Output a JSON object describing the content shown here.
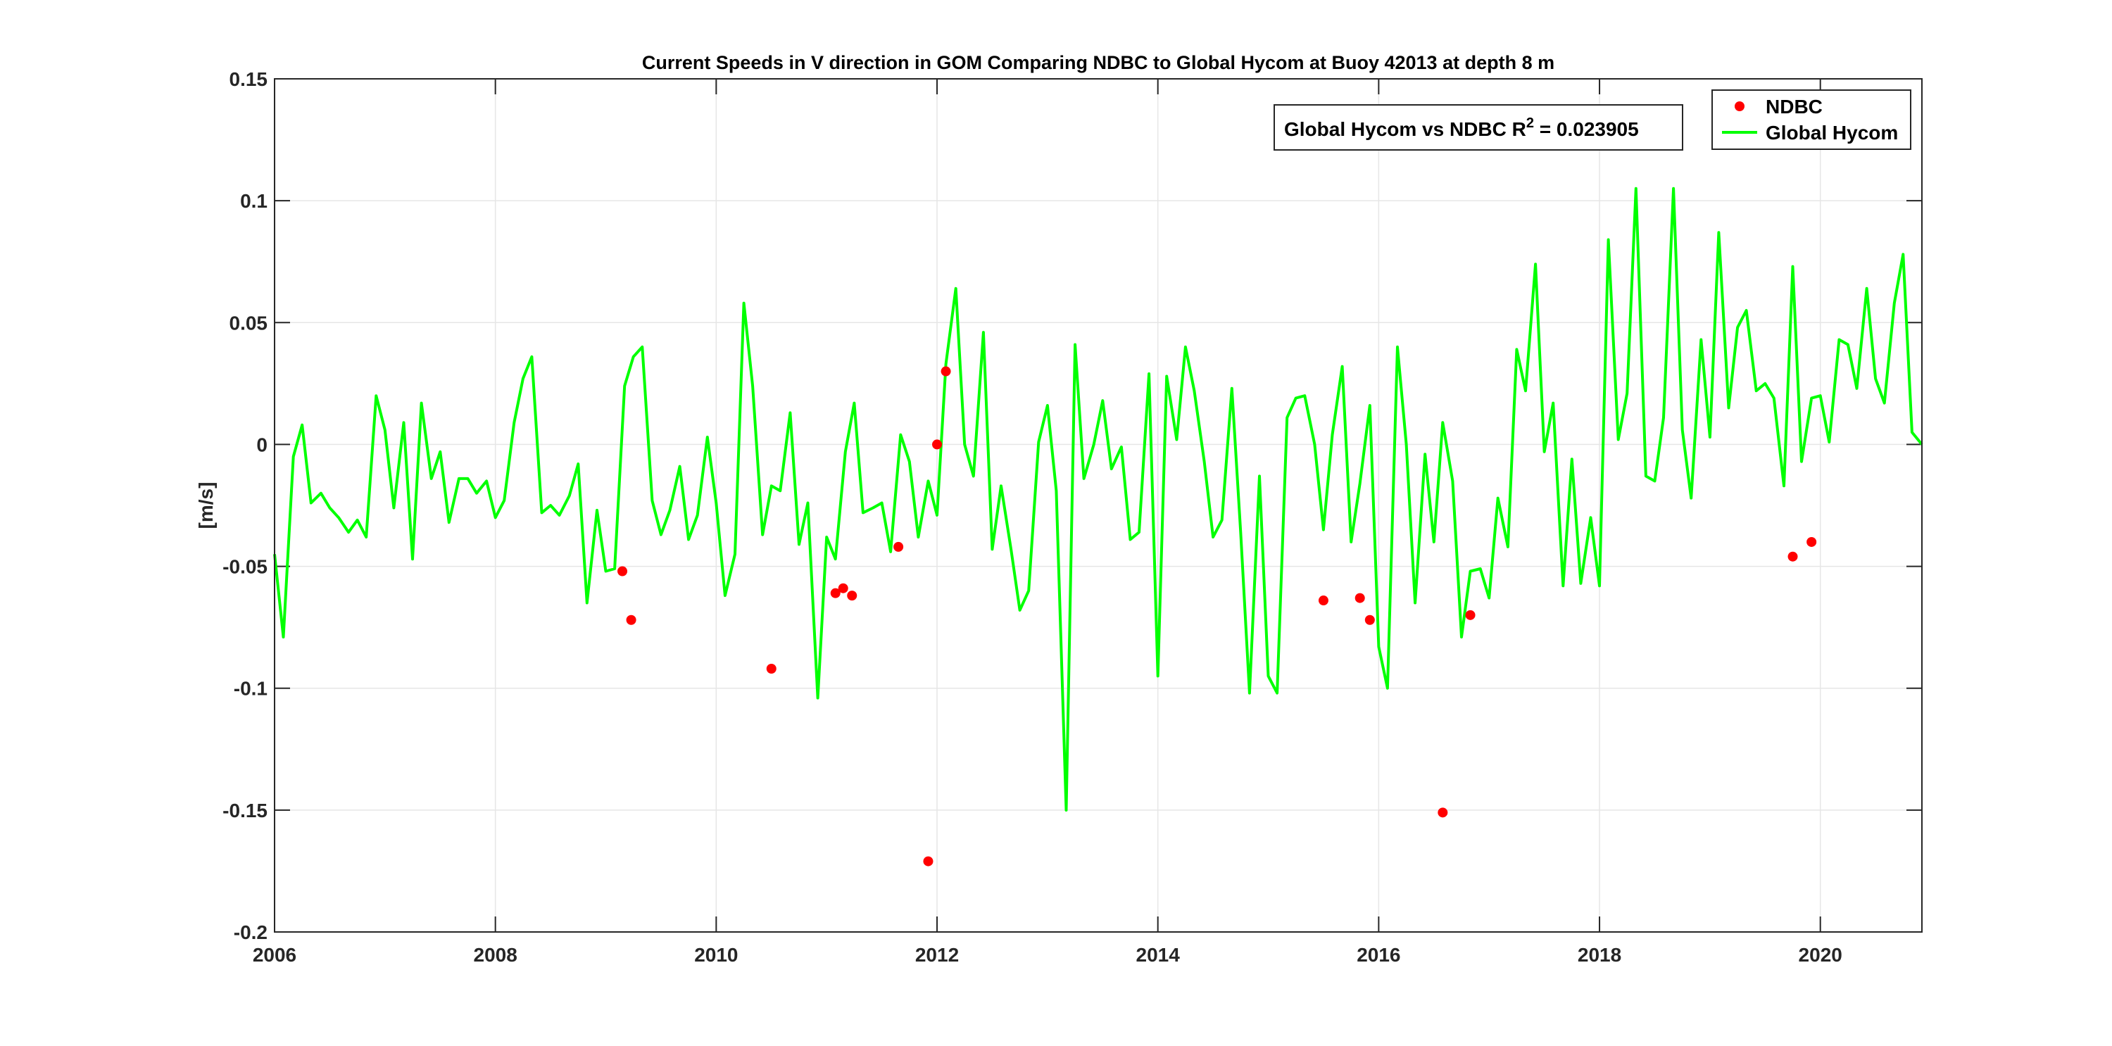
{
  "chart_data": {
    "type": "line",
    "title": "Current Speeds in V direction in GOM Comparing NDBC to Global Hycom at Buoy  42013  at depth  8 m",
    "xlabel": "",
    "ylabel": "[m/s]",
    "xlim": [
      2006,
      2020.92
    ],
    "ylim": [
      -0.2,
      0.15
    ],
    "grid": true,
    "x_ticks": [
      2006,
      2008,
      2010,
      2012,
      2014,
      2016,
      2018,
      2020
    ],
    "x_tick_labels": [
      "2006",
      "2008",
      "2010",
      "2012",
      "2014",
      "2016",
      "2018",
      "2020"
    ],
    "y_ticks": [
      -0.2,
      -0.15,
      -0.1,
      -0.05,
      0,
      0.05,
      0.1,
      0.15
    ],
    "y_tick_labels": [
      "-0.2",
      "-0.15",
      "-0.1",
      "-0.05",
      "0",
      "0.05",
      "0.1",
      "0.15"
    ],
    "legend_position": "top-right",
    "annotation": {
      "text_main": "Global Hycom vs NDBC R",
      "sup": "2",
      "text_value": " = 0.023905",
      "r_squared": 0.023905
    },
    "series": [
      {
        "name": "NDBC",
        "kind": "scatter",
        "color": "#ff0000",
        "x": [
          2009.15,
          2009.23,
          2010.5,
          2011.08,
          2011.15,
          2011.23,
          2011.65,
          2011.92,
          2012.0,
          2012.08,
          2015.5,
          2015.83,
          2015.92,
          2016.58,
          2016.83,
          2019.75,
          2019.92
        ],
        "y": [
          -0.052,
          -0.072,
          -0.092,
          -0.061,
          -0.059,
          -0.062,
          -0.042,
          -0.171,
          0.0,
          0.03,
          -0.064,
          -0.063,
          -0.072,
          -0.151,
          -0.07,
          -0.046,
          -0.04
        ]
      },
      {
        "name": "Global Hycom",
        "kind": "line",
        "color": "#00ff00",
        "x": [
          2006.0,
          2006.08,
          2006.17,
          2006.25,
          2006.33,
          2006.42,
          2006.5,
          2006.58,
          2006.67,
          2006.75,
          2006.83,
          2006.92,
          2007.0,
          2007.08,
          2007.17,
          2007.25,
          2007.33,
          2007.42,
          2007.5,
          2007.58,
          2007.67,
          2007.75,
          2007.83,
          2007.92,
          2008.0,
          2008.08,
          2008.17,
          2008.25,
          2008.33,
          2008.42,
          2008.5,
          2008.58,
          2008.67,
          2008.75,
          2008.83,
          2008.92,
          2009.0,
          2009.08,
          2009.17,
          2009.25,
          2009.33,
          2009.42,
          2009.5,
          2009.58,
          2009.67,
          2009.75,
          2009.83,
          2009.92,
          2010.0,
          2010.08,
          2010.17,
          2010.25,
          2010.33,
          2010.42,
          2010.5,
          2010.58,
          2010.67,
          2010.75,
          2010.83,
          2010.92,
          2011.0,
          2011.08,
          2011.17,
          2011.25,
          2011.33,
          2011.42,
          2011.5,
          2011.58,
          2011.67,
          2011.75,
          2011.83,
          2011.92,
          2012.0,
          2012.08,
          2012.17,
          2012.25,
          2012.33,
          2012.42,
          2012.5,
          2012.58,
          2012.67,
          2012.75,
          2012.83,
          2012.92,
          2013.0,
          2013.08,
          2013.17,
          2013.25,
          2013.33,
          2013.42,
          2013.5,
          2013.58,
          2013.67,
          2013.75,
          2013.83,
          2013.92,
          2014.0,
          2014.08,
          2014.17,
          2014.25,
          2014.33,
          2014.42,
          2014.5,
          2014.58,
          2014.67,
          2014.75,
          2014.83,
          2014.92,
          2015.0,
          2015.08,
          2015.17,
          2015.25,
          2015.33,
          2015.42,
          2015.5,
          2015.58,
          2015.67,
          2015.75,
          2015.83,
          2015.92,
          2016.0,
          2016.08,
          2016.17,
          2016.25,
          2016.33,
          2016.42,
          2016.5,
          2016.58,
          2016.67,
          2016.75,
          2016.83,
          2016.92,
          2017.0,
          2017.08,
          2017.17,
          2017.25,
          2017.33,
          2017.42,
          2017.5,
          2017.58,
          2017.67,
          2017.75,
          2017.83,
          2017.92,
          2018.0,
          2018.08,
          2018.17,
          2018.25,
          2018.33,
          2018.42,
          2018.5,
          2018.58,
          2018.67,
          2018.75,
          2018.83,
          2018.92,
          2019.0,
          2019.08,
          2019.17,
          2019.25,
          2019.33,
          2019.42,
          2019.5,
          2019.58,
          2019.67,
          2019.75,
          2019.83,
          2019.92,
          2020.0,
          2020.08,
          2020.17,
          2020.25,
          2020.33,
          2020.42,
          2020.5,
          2020.58,
          2020.67,
          2020.75,
          2020.83,
          2020.92
        ],
        "y": [
          -0.045,
          -0.079,
          -0.005,
          0.008,
          -0.024,
          -0.02,
          -0.026,
          -0.03,
          -0.036,
          -0.031,
          -0.038,
          0.02,
          0.006,
          -0.026,
          0.009,
          -0.047,
          0.017,
          -0.014,
          -0.003,
          -0.032,
          -0.014,
          -0.014,
          -0.02,
          -0.015,
          -0.03,
          -0.023,
          0.009,
          0.027,
          0.036,
          -0.028,
          -0.025,
          -0.029,
          -0.021,
          -0.008,
          -0.065,
          -0.027,
          -0.052,
          -0.051,
          0.024,
          0.036,
          0.04,
          -0.023,
          -0.037,
          -0.027,
          -0.009,
          -0.039,
          -0.029,
          0.003,
          -0.024,
          -0.062,
          -0.045,
          0.058,
          0.024,
          -0.037,
          -0.017,
          -0.019,
          0.013,
          -0.041,
          -0.024,
          -0.104,
          -0.038,
          -0.047,
          -0.003,
          0.017,
          -0.028,
          -0.026,
          -0.024,
          -0.044,
          0.004,
          -0.007,
          -0.038,
          -0.015,
          -0.029,
          0.033,
          0.064,
          0.0,
          -0.013,
          0.046,
          -0.043,
          -0.017,
          -0.043,
          -0.068,
          -0.06,
          0.001,
          0.016,
          -0.019,
          -0.15,
          0.041,
          -0.014,
          0.0,
          0.018,
          -0.01,
          -0.001,
          -0.039,
          -0.036,
          0.029,
          -0.095,
          0.028,
          0.002,
          0.04,
          0.022,
          -0.007,
          -0.038,
          -0.031,
          0.023,
          -0.036,
          -0.102,
          -0.013,
          -0.095,
          -0.102,
          0.011,
          0.019,
          0.02,
          0.0,
          -0.035,
          0.004,
          0.032,
          -0.04,
          -0.016,
          0.016,
          -0.083,
          -0.1,
          0.04,
          0.0,
          -0.065,
          -0.004,
          -0.04,
          0.009,
          -0.015,
          -0.079,
          -0.052,
          -0.051,
          -0.063,
          -0.022,
          -0.042,
          0.039,
          0.022,
          0.074,
          -0.003,
          0.017,
          -0.058,
          -0.006,
          -0.057,
          -0.03,
          -0.058,
          0.084,
          0.002,
          0.021,
          0.105,
          -0.013,
          -0.015,
          0.011,
          0.105,
          0.006,
          -0.022,
          0.043,
          0.003,
          0.087,
          0.015,
          0.048,
          0.055,
          0.022,
          0.025,
          0.019,
          -0.017,
          0.073,
          -0.007,
          0.019,
          0.02,
          0.001,
          0.043,
          0.041,
          0.023,
          0.064,
          0.027,
          0.017,
          0.058,
          0.078,
          0.005,
          0.0
        ]
      }
    ]
  }
}
